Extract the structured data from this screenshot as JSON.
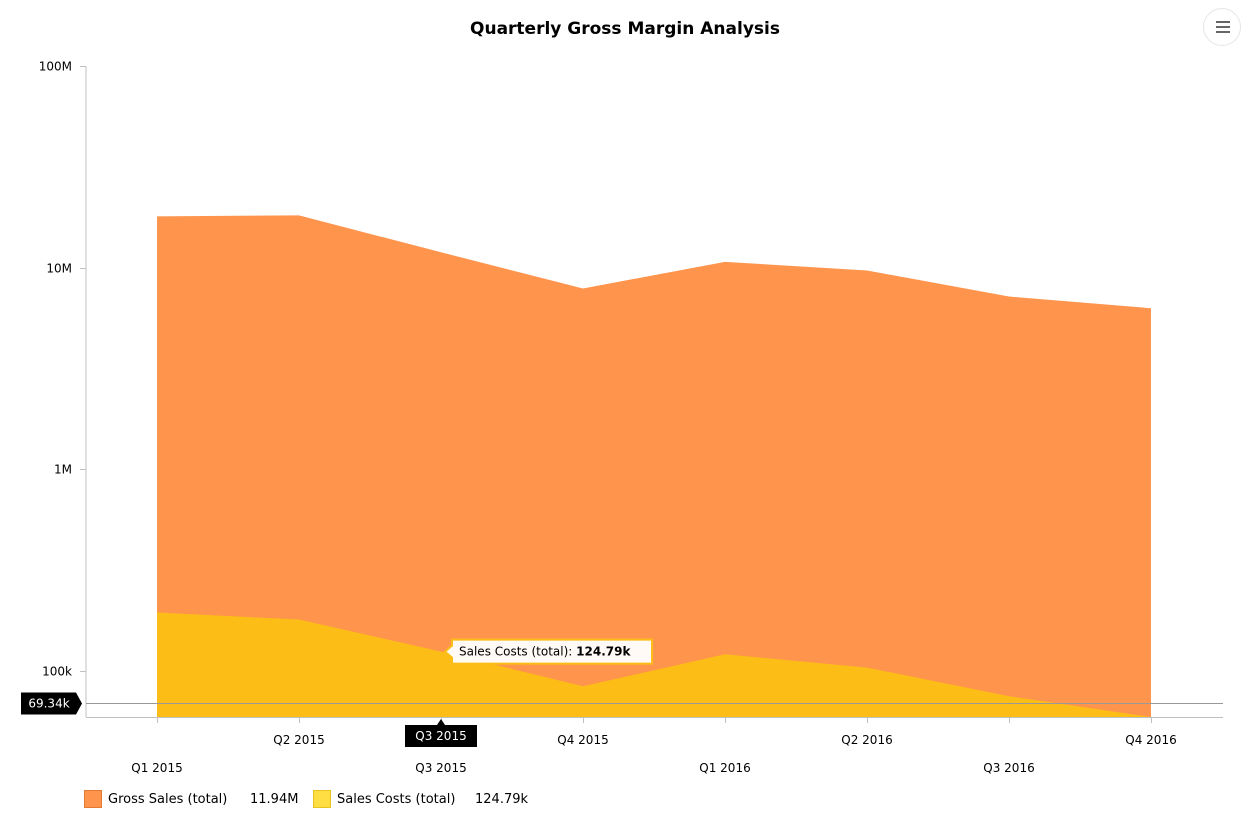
{
  "chart_data": {
    "type": "area",
    "title": "Quarterly Gross Margin Analysis",
    "xlabel": "",
    "ylabel": "",
    "y_scale": "log",
    "ylim": [
      50000,
      100000000
    ],
    "y_ticks": [
      {
        "value": 100000,
        "label": "100k"
      },
      {
        "value": 1000000,
        "label": "1M"
      },
      {
        "value": 10000000,
        "label": "10M"
      },
      {
        "value": 100000000,
        "label": "100M"
      }
    ],
    "categories": [
      "Q1 2015",
      "Q2 2015",
      "Q3 2015",
      "Q4 2015",
      "Q1 2016",
      "Q2 2016",
      "Q3 2016",
      "Q4 2016"
    ],
    "series": [
      {
        "name": "Gross Sales (total)",
        "color": "#ff944d",
        "legend_value": "11.94M",
        "values": [
          18000000,
          18200000,
          11940000,
          7900000,
          10700000,
          9700000,
          7200000,
          6300000
        ]
      },
      {
        "name": "Sales Costs (total)",
        "color": "#fcbd16",
        "legend_color": "#ffde44",
        "legend_value": "124.79k",
        "values": [
          195000,
          180000,
          124790,
          84000,
          121000,
          104000,
          75000,
          56000
        ]
      }
    ],
    "grid": false,
    "legend_position": "bottom-left"
  },
  "crosshair": {
    "y_value": 69340,
    "y_label": "69.34k",
    "x_index": 2,
    "x_label": "Q3 2015"
  },
  "tooltip": {
    "series_index": 1,
    "point_index": 2,
    "label": "Sales Costs (total):",
    "value": "124.79k"
  },
  "menu_icon": "hamburger-menu-icon"
}
